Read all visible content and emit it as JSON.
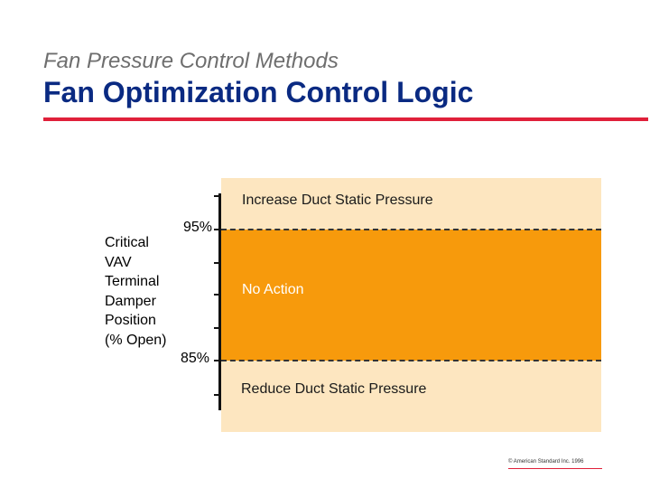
{
  "header": {
    "subtitle": "Fan Pressure Control Methods",
    "title": "Fan Optimization Control Logic"
  },
  "diagram": {
    "axis_title_lines": [
      "Critical",
      "VAV",
      "Terminal",
      "Damper",
      "Position",
      "(% Open)"
    ],
    "upper_threshold": "95%",
    "lower_threshold": "85%",
    "zones": {
      "increase": "Increase Duct Static Pressure",
      "no_action": "No Action",
      "reduce": "Reduce Duct Static Pressure"
    },
    "colors": {
      "panel": "#fde6c0",
      "no_action_band": "#f79a0c",
      "title": "#0a2a82",
      "rule": "#e0203a"
    }
  },
  "footer": {
    "copyright": "© American Standard Inc. 1996"
  }
}
